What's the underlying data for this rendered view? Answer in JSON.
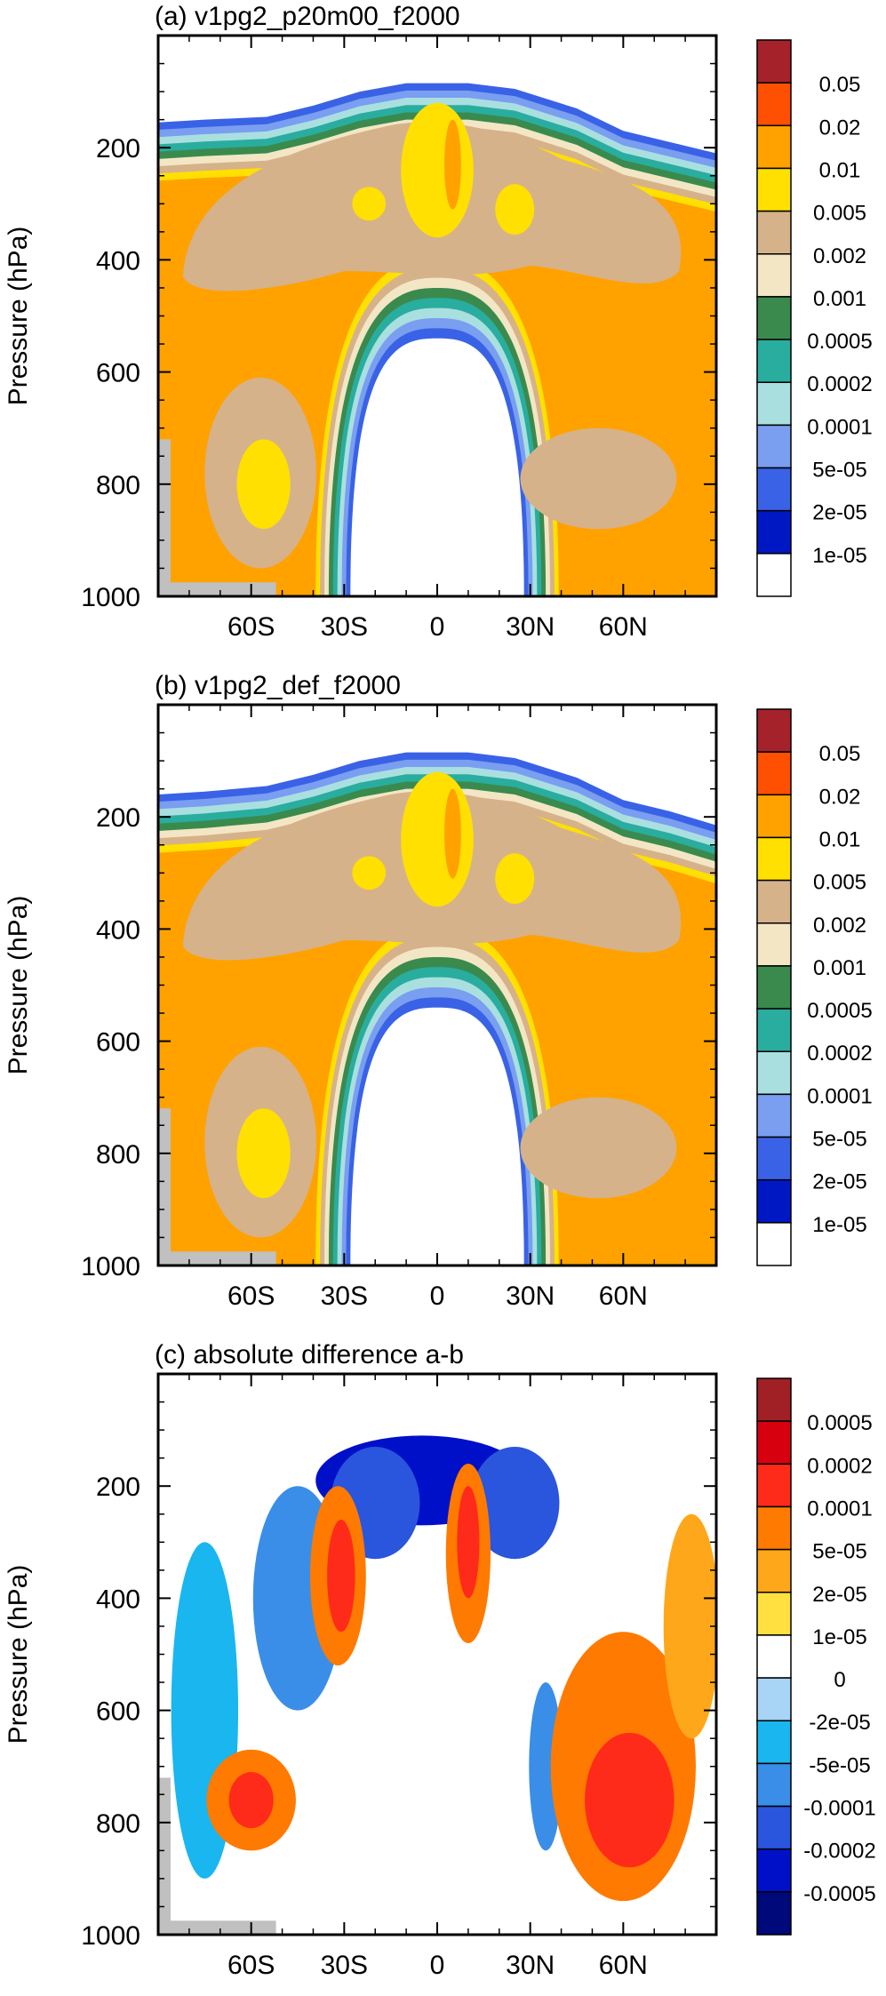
{
  "chart_data": [
    {
      "type": "contour",
      "title": "(a) v1pg2_p20m00_f2000",
      "ylabel": "Pressure (hPa)",
      "xlabel": "",
      "x_range": [
        -90,
        90
      ],
      "y_range": [
        1000,
        0
      ],
      "x_ticks": [
        {
          "value": -60,
          "label": "60S"
        },
        {
          "value": -30,
          "label": "30S"
        },
        {
          "value": 0,
          "label": "0"
        },
        {
          "value": 30,
          "label": "30N"
        },
        {
          "value": 60,
          "label": "60N"
        }
      ],
      "y_ticks": [
        {
          "value": 200,
          "label": "200"
        },
        {
          "value": 400,
          "label": "400"
        },
        {
          "value": 600,
          "label": "600"
        },
        {
          "value": 800,
          "label": "800"
        },
        {
          "value": 1000,
          "label": "1000"
        }
      ],
      "colorbar": {
        "labels": [
          "0.05",
          "0.02",
          "0.01",
          "0.005",
          "0.002",
          "0.001",
          "0.0005",
          "0.0002",
          "0.0001",
          "5e-05",
          "2e-05",
          "1e-05"
        ],
        "colors": [
          "#a6222b",
          "#ff4f00",
          "#ffa200",
          "#ffe000",
          "#d6b28a",
          "#f3e6c4",
          "#3a8a4d",
          "#29ad9f",
          "#aadfe0",
          "#7a9ef0",
          "#3a62e6",
          "#0018c4",
          "#ffffff"
        ]
      },
      "shape": "arch",
      "data_top_hpa": {
        "south_edge": 155,
        "equator": 85,
        "north_edge": 210
      },
      "arch_inner_top_hpa": 560,
      "arch_inner_latitudes": [
        -28,
        28
      ],
      "masked_surface": true
    },
    {
      "type": "contour",
      "title": "(b) v1pg2_def_f2000",
      "ylabel": "Pressure (hPa)",
      "xlabel": "",
      "x_range": [
        -90,
        90
      ],
      "y_range": [
        1000,
        0
      ],
      "x_ticks": [
        {
          "value": -60,
          "label": "60S"
        },
        {
          "value": -30,
          "label": "30S"
        },
        {
          "value": 0,
          "label": "0"
        },
        {
          "value": 30,
          "label": "30N"
        },
        {
          "value": 60,
          "label": "60N"
        }
      ],
      "y_ticks": [
        {
          "value": 200,
          "label": "200"
        },
        {
          "value": 400,
          "label": "400"
        },
        {
          "value": 600,
          "label": "600"
        },
        {
          "value": 800,
          "label": "800"
        },
        {
          "value": 1000,
          "label": "1000"
        }
      ],
      "colorbar": {
        "labels": [
          "0.05",
          "0.02",
          "0.01",
          "0.005",
          "0.002",
          "0.001",
          "0.0005",
          "0.0002",
          "0.0001",
          "5e-05",
          "2e-05",
          "1e-05"
        ],
        "colors": [
          "#a6222b",
          "#ff4f00",
          "#ffa200",
          "#ffe000",
          "#d6b28a",
          "#f3e6c4",
          "#3a8a4d",
          "#29ad9f",
          "#aadfe0",
          "#7a9ef0",
          "#3a62e6",
          "#0018c4",
          "#ffffff"
        ]
      },
      "shape": "arch",
      "data_top_hpa": {
        "south_edge": 160,
        "equator": 85,
        "north_edge": 215
      },
      "arch_inner_top_hpa": 560,
      "arch_inner_latitudes": [
        -28,
        28
      ],
      "masked_surface": true
    },
    {
      "type": "contour",
      "title": "(c) absolute difference a-b",
      "ylabel": "Pressure (hPa)",
      "xlabel": "",
      "x_range": [
        -90,
        90
      ],
      "y_range": [
        1000,
        0
      ],
      "x_ticks": [
        {
          "value": -60,
          "label": "60S"
        },
        {
          "value": -30,
          "label": "30S"
        },
        {
          "value": 0,
          "label": "0"
        },
        {
          "value": 30,
          "label": "30N"
        },
        {
          "value": 60,
          "label": "60N"
        }
      ],
      "y_ticks": [
        {
          "value": 200,
          "label": "200"
        },
        {
          "value": 400,
          "label": "400"
        },
        {
          "value": 600,
          "label": "600"
        },
        {
          "value": 800,
          "label": "800"
        },
        {
          "value": 1000,
          "label": "1000"
        }
      ],
      "colorbar": {
        "labels": [
          "0.0005",
          "0.0002",
          "0.0001",
          "5e-05",
          "2e-05",
          "1e-05",
          "0",
          "-2e-05",
          "-5e-05",
          "-0.0001",
          "-0.0002",
          "-0.0005"
        ],
        "colors": [
          "#a12025",
          "#d6000f",
          "#ff2b1a",
          "#ff7a00",
          "#ffa71a",
          "#ffe040",
          "#ffffff",
          "#a8d4f5",
          "#19b6f0",
          "#3a8ee8",
          "#2a55dd",
          "#0010c8",
          "#00097a"
        ]
      },
      "shape": "difference",
      "masked_surface": true
    }
  ]
}
